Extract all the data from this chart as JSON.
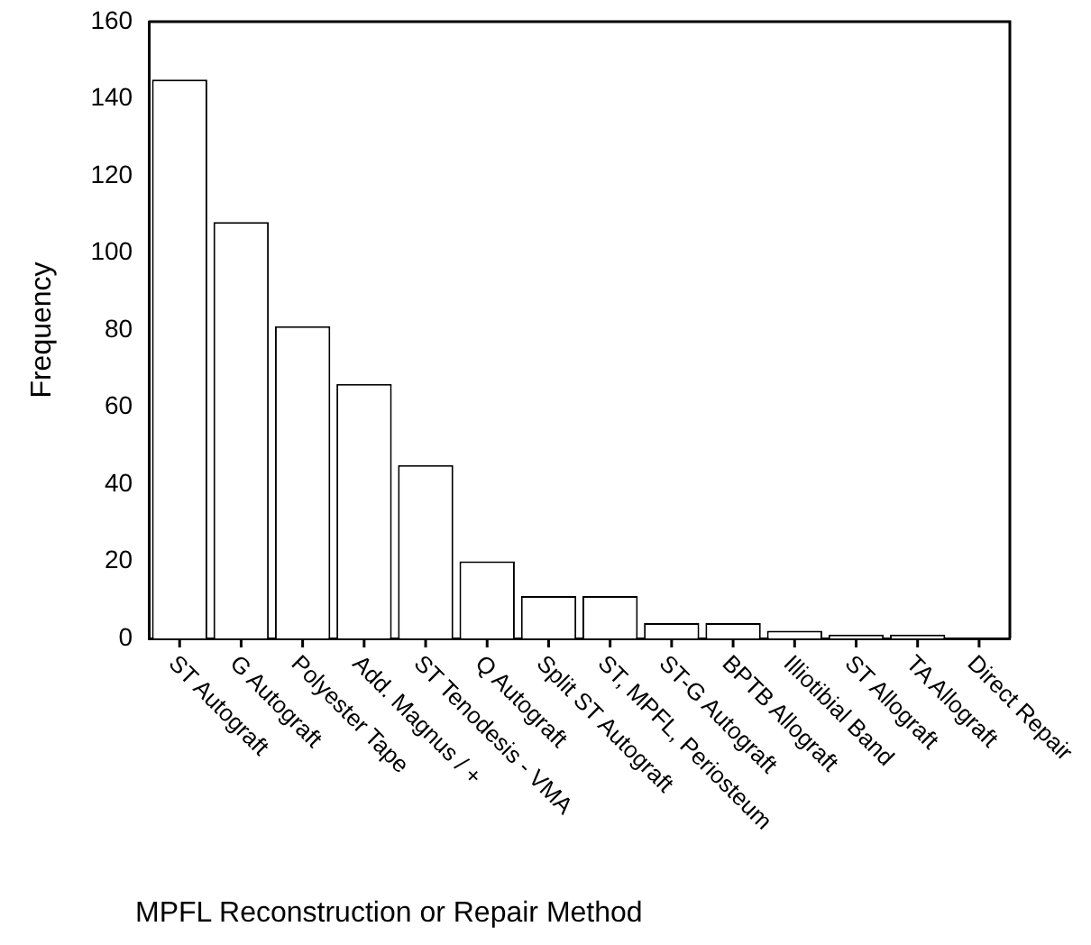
{
  "chart_data": {
    "type": "bar",
    "xlabel": "MPFL Reconstruction or Repair Method",
    "ylabel": "Frequency",
    "categories": [
      "ST Autograft",
      "G Autograft",
      "Polyester Tape",
      "Add. Magnus / +",
      "ST Tenodesis - VMA",
      "Q Autograft",
      "Split ST Autograft",
      "ST, MPFL, Periosteum",
      "ST-G Autograft",
      "BPTB Allograft",
      "Illiotibial Band",
      "ST Allograft",
      "TA Allograft",
      "Direct Repair"
    ],
    "values": [
      145,
      108,
      81,
      66,
      45,
      20,
      11,
      11,
      4,
      4,
      2,
      1,
      1,
      0
    ],
    "color": "#ffffff",
    "ylim": [
      0,
      160
    ],
    "yticks": [
      0,
      20,
      40,
      60,
      80,
      100,
      120,
      140,
      160
    ],
    "grid": false,
    "legend": false
  }
}
